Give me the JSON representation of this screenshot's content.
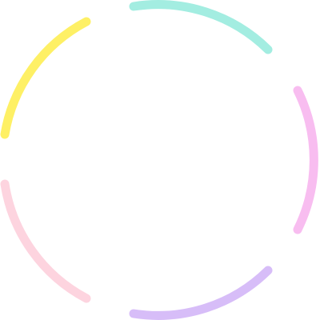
{
  "ring": {
    "segments": [
      {
        "name": "segment-teal",
        "color": "#a3ede1"
      },
      {
        "name": "segment-pink",
        "color": "#f8bdf0"
      },
      {
        "name": "segment-purple",
        "color": "#d7bdf8"
      },
      {
        "name": "segment-rose",
        "color": "#fdd4df"
      },
      {
        "name": "segment-yellow",
        "color": "#fef065"
      }
    ]
  }
}
